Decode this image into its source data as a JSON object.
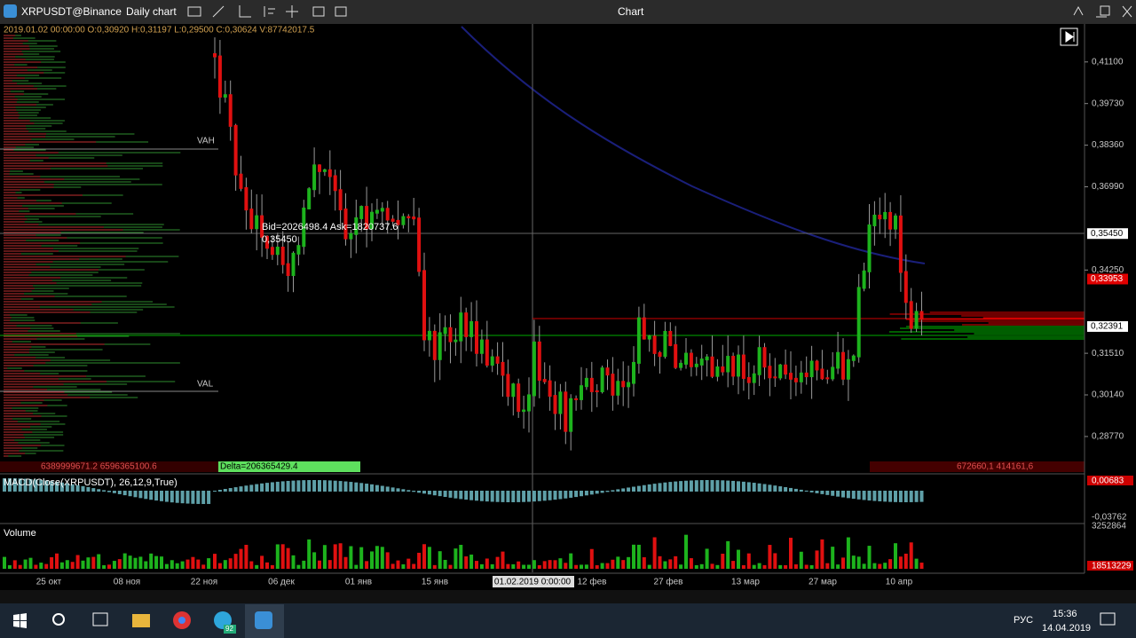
{
  "window": {
    "symbol": "XRPUSDT@Binance",
    "timeframe": "Daily chart",
    "title": "Chart"
  },
  "info_line": "2019.01.02 00:00:00 O:0,30920 H:0,31197 L:0,29500 C:0,30624 V:87742017.5",
  "price_axis": {
    "ylim": [
      0.2757,
      0.4235
    ],
    "ticks": [
      {
        "value": 0.411,
        "label": "0,41100"
      },
      {
        "value": 0.3973,
        "label": "0,39730"
      },
      {
        "value": 0.3836,
        "label": "0,38360"
      },
      {
        "value": 0.3699,
        "label": "0,36990"
      },
      {
        "value": 0.3425,
        "label": "0,34250"
      },
      {
        "value": 0.3151,
        "label": "0,31510"
      },
      {
        "value": 0.3014,
        "label": "0,30140"
      },
      {
        "value": 0.2877,
        "label": "0,28770"
      }
    ],
    "markers": [
      {
        "value": 0.3545,
        "label": "0,35450"
      },
      {
        "value": 0.33953,
        "label": "0,33953"
      },
      {
        "value": 0.32391,
        "label": "0,32391"
      }
    ]
  },
  "annotations": {
    "vah": "VAH",
    "val": "VAL",
    "bid_ask": "Bid=2026498.4 Ask=1820737.6",
    "cursor_price": "0,35450",
    "left_totals": "6389999671.2 6596365100.6",
    "delta": "Delta=206365429.4",
    "right_totals": "672660,1 414161,6"
  },
  "macd": {
    "label": "MACD(Close(XRPUSDT), 26,12,9,True)",
    "top": "0,00683",
    "bottom": "-0,03762"
  },
  "volume": {
    "label": "Volume",
    "top": "3252864",
    "bottom": "18513229"
  },
  "date_axis": [
    "25 окт",
    "08 ноя",
    "22 ноя",
    "06 дек",
    "01 янв",
    "15 янв",
    "01.02.2019 0:00:00",
    "12 фев",
    "27 фев",
    "13 мар",
    "27 мар",
    "10 апр"
  ],
  "taskbar": {
    "badge": "92",
    "language": "РУС",
    "time": "15:36",
    "date": "14.04.2019"
  }
}
